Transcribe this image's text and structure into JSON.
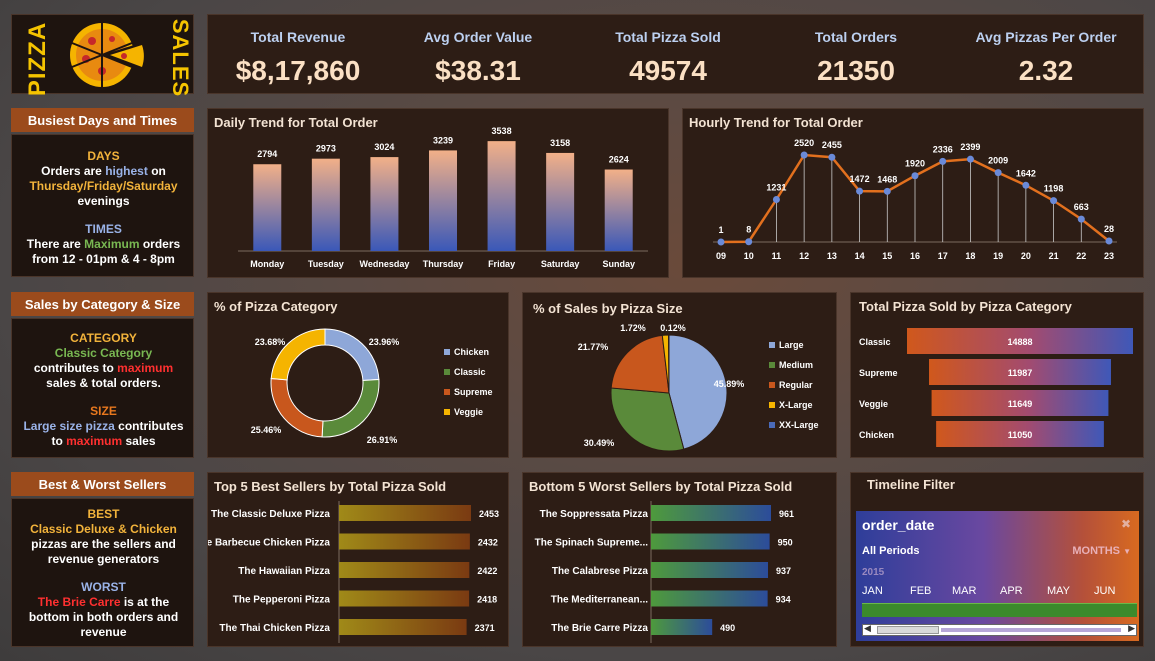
{
  "logo": {
    "left_text": "PIZZA",
    "right_text": "SALES"
  },
  "kpis": [
    {
      "label": "Total Revenue",
      "value": "$8,17,860"
    },
    {
      "label": "Avg Order Value",
      "value": "$38.31"
    },
    {
      "label": "Total Pizza Sold",
      "value": "49574"
    },
    {
      "label": "Total Orders",
      "value": "21350"
    },
    {
      "label": "Avg Pizzas Per Order",
      "value": "2.32"
    }
  ],
  "busiest": {
    "title": "Busiest Days and Times",
    "days_head": "DAYS",
    "days_l1a": "Orders are ",
    "days_l1b": "highest",
    "days_l1c": " on",
    "days_l2": "Thursday/Friday/Saturday",
    "days_l3": "evenings",
    "times_head": "TIMES",
    "times_l1a": "There are ",
    "times_l1b": "Maximum",
    "times_l1c": " orders",
    "times_l2": "from 12 - 01pm & 4 - 8pm"
  },
  "catsize": {
    "title": "Sales by Category & Size",
    "cat_head": "CATEGORY",
    "cat_l1": "Classic Category",
    "cat_l2a": "contributes to ",
    "cat_l2b": "maximum",
    "cat_l3": "sales & total orders.",
    "size_head": "SIZE",
    "size_l1a": "Large size pizza",
    "size_l1b": " contributes",
    "size_l2a": "to ",
    "size_l2b": "maximum",
    "size_l2c": " sales"
  },
  "bestworst": {
    "title": "Best &  Worst Sellers",
    "best_head": "BEST",
    "best_l1": "Classic Deluxe & Chicken",
    "best_l2": "pizzas are the sellers and",
    "best_l3": "revenue generators",
    "worst_head": "WORST",
    "worst_l1a": "The Brie Carre",
    "worst_l1b": " is at the",
    "worst_l2": "bottom in both orders and",
    "worst_l3": "revenue"
  },
  "filter": {
    "title": "Timeline Filter",
    "field": "order_date",
    "periods": "All Periods",
    "unit": "MONTHS",
    "year": "2015",
    "months": [
      "JAN",
      "FEB",
      "MAR",
      "APR",
      "MAY",
      "JUN"
    ]
  },
  "chart_data": [
    {
      "type": "bar",
      "title": "Daily Trend for Total Order",
      "categories": [
        "Monday",
        "Tuesday",
        "Wednesday",
        "Thursday",
        "Friday",
        "Saturday",
        "Sunday"
      ],
      "values": [
        2794,
        2973,
        3024,
        3239,
        3538,
        3158,
        2624
      ]
    },
    {
      "type": "line",
      "title": "Hourly Trend for Total Order",
      "categories": [
        "09",
        "10",
        "11",
        "12",
        "13",
        "14",
        "15",
        "16",
        "17",
        "18",
        "19",
        "20",
        "21",
        "22",
        "23"
      ],
      "values": [
        1,
        8,
        1231,
        2520,
        2455,
        1472,
        1468,
        1920,
        2336,
        2399,
        2009,
        1642,
        1198,
        663,
        28
      ]
    },
    {
      "type": "pie",
      "title": "% of Pizza Category",
      "labels": [
        "Chicken",
        "Classic",
        "Supreme",
        "Veggie"
      ],
      "values": [
        23.96,
        26.91,
        25.46,
        23.68
      ],
      "value_labels": [
        "23.96%",
        "26.91%",
        "25.46%",
        "23.68%"
      ],
      "colors": [
        "#8ea7d8",
        "#5a8a3a",
        "#c8571d",
        "#f5b400"
      ]
    },
    {
      "type": "pie",
      "title": "% of Sales by Pizza Size",
      "labels": [
        "Large",
        "Medium",
        "Regular",
        "X-Large",
        "XX-Large"
      ],
      "values": [
        45.89,
        30.49,
        21.77,
        1.72,
        0.12
      ],
      "value_labels": [
        "45.89%",
        "30.49%",
        "21.77%",
        "1.72%",
        "0.12%"
      ],
      "colors": [
        "#8ea7d8",
        "#5a8a3a",
        "#c8571d",
        "#f5b400",
        "#4a6ab8"
      ]
    },
    {
      "type": "bar",
      "title": "Total Pizza Sold by Pizza Category",
      "categories": [
        "Classic",
        "Supreme",
        "Veggie",
        "Chicken"
      ],
      "values": [
        14888,
        11987,
        11649,
        11050
      ]
    },
    {
      "type": "bar",
      "title": "Top 5 Best Sellers by Total Pizza Sold",
      "categories": [
        "The Classic Deluxe Pizza",
        "The Barbecue Chicken Pizza",
        "The Hawaiian Pizza",
        "The Pepperoni Pizza",
        "The Thai Chicken Pizza"
      ],
      "values": [
        2453,
        2432,
        2422,
        2418,
        2371
      ]
    },
    {
      "type": "bar",
      "title": "Bottom 5 Worst Sellers by Total Pizza Sold",
      "categories": [
        "The Soppressata Pizza",
        "The Spinach Supreme...",
        "The Calabrese Pizza",
        "The Mediterranean...",
        "The Brie Carre Pizza"
      ],
      "values": [
        961,
        950,
        937,
        934,
        490
      ]
    }
  ]
}
